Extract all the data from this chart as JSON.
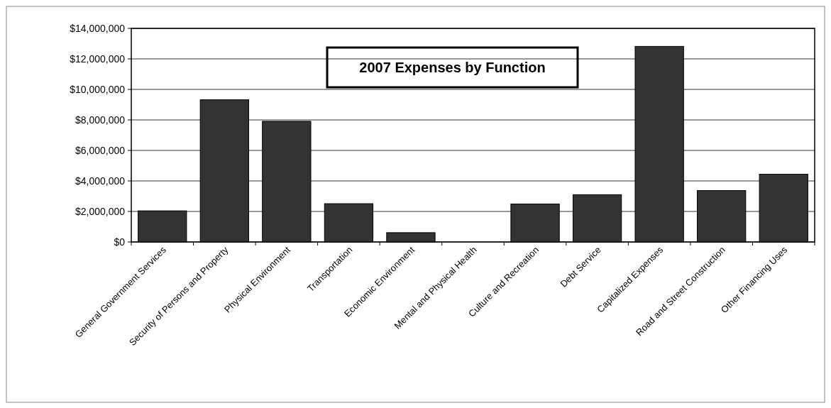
{
  "chart_data": {
    "type": "bar",
    "title": "2007 Expenses by Function",
    "categories": [
      "General Government Services",
      "Security of Persons and Property",
      "Physical Environment",
      "Transportation",
      "Economic Environment",
      "Mental and Physical Health",
      "Culture and Recreation",
      "Debt Service",
      "Capitalized Expenses",
      "Road and Street Construction",
      "Other Financing Uses"
    ],
    "values": [
      2040000,
      9320000,
      7910000,
      2510000,
      610000,
      0,
      2490000,
      3100000,
      12820000,
      3370000,
      4440000
    ],
    "color": "#333333",
    "ylim": [
      0,
      14000000
    ],
    "yticks": [
      {
        "value": 0,
        "label": "$0"
      },
      {
        "value": 2000000,
        "label": "$2,000,000"
      },
      {
        "value": 4000000,
        "label": "$4,000,000"
      },
      {
        "value": 6000000,
        "label": "$6,000,000"
      },
      {
        "value": 8000000,
        "label": "$8,000,000"
      },
      {
        "value": 10000000,
        "label": "$10,000,000"
      },
      {
        "value": 12000000,
        "label": "$12,000,000"
      },
      {
        "value": 14000000,
        "label": "$14,000,000"
      }
    ],
    "grid": "y"
  }
}
